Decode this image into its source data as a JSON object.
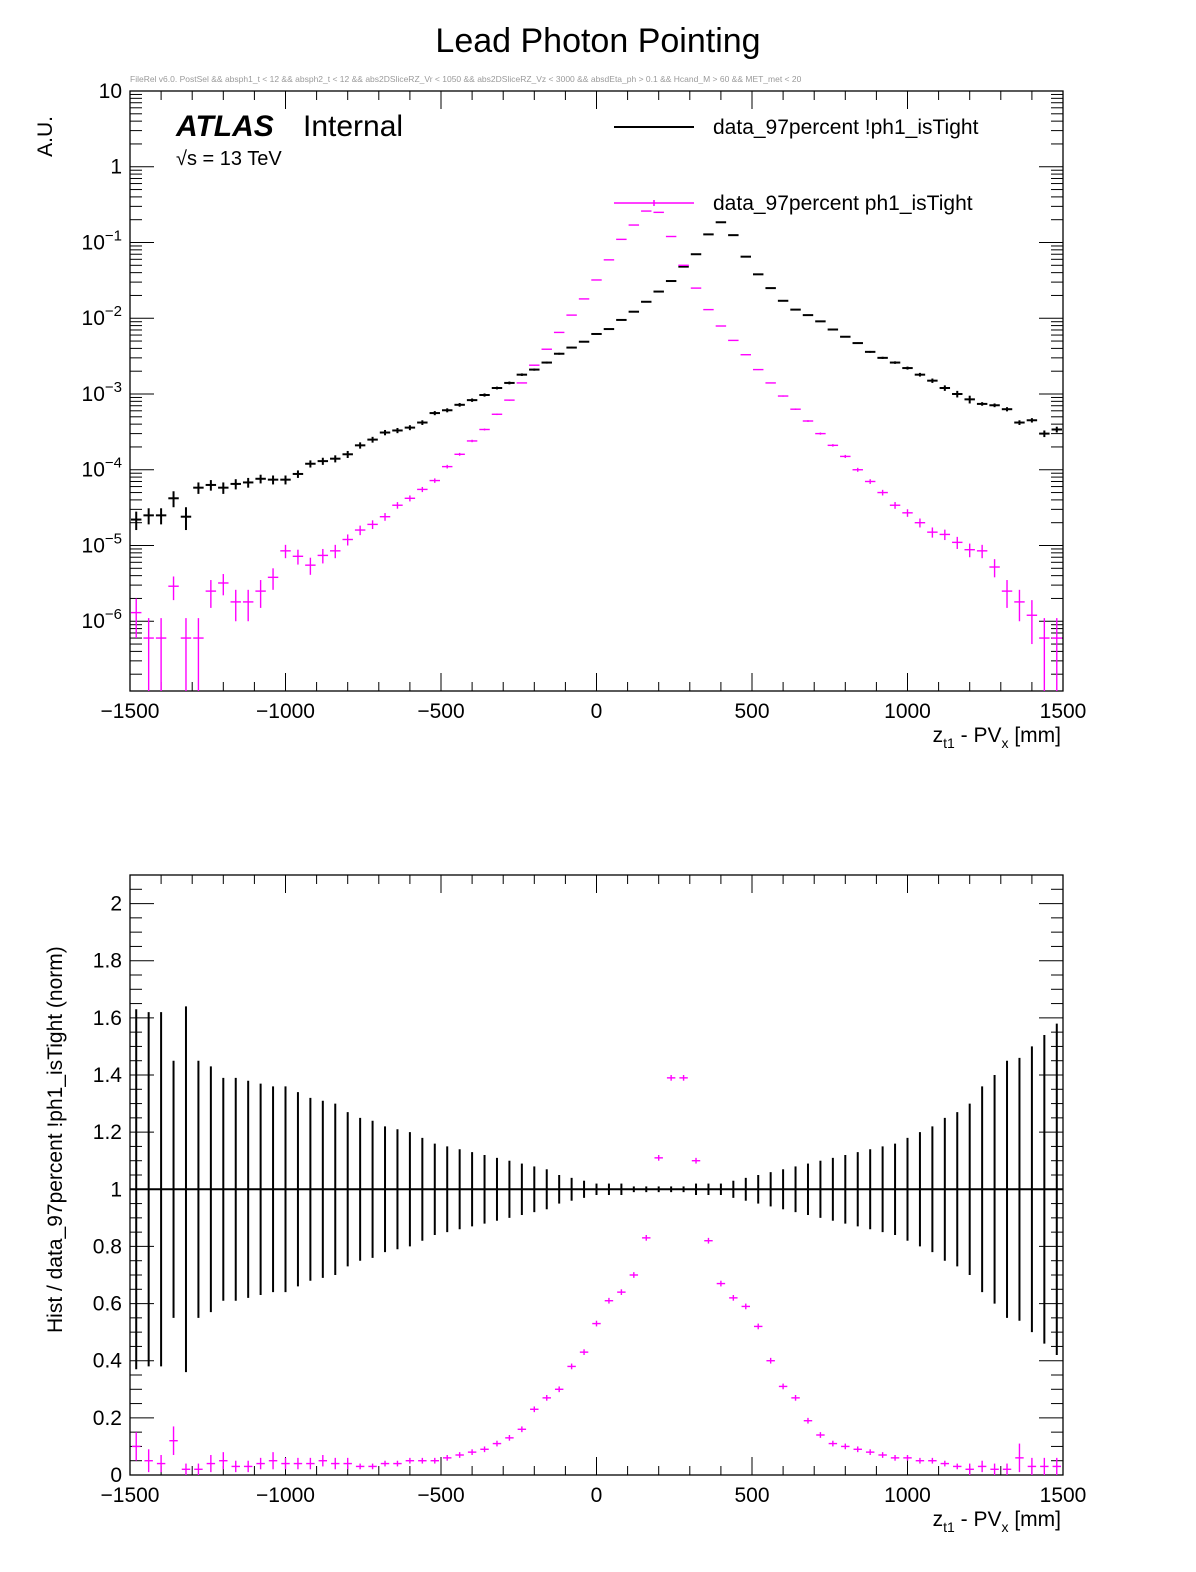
{
  "figure": {
    "title": "Lead Photon Pointing",
    "cut_string": "FileRel v6.0. PostSel &&  absph1_t < 12 && absph2_t < 12 && abs2DSliceRZ_Vr < 1050 && abs2DSliceRZ_Vz < 3000 && absdEta_ph > 0.1 && Hcand_M > 60 && MET_met < 20",
    "atlas_label": "ATLAS",
    "internal_label": "Internal",
    "energy_label": "√s = 13 TeV",
    "colors": {
      "black_series": "#000000",
      "magenta_series": "#ff00ff",
      "frame": "#000000"
    }
  },
  "chart_data": [
    {
      "type": "scatter",
      "panel": "top",
      "yscale": "log",
      "xlabel": "z",
      "xlabel_sub": "t1",
      "xlabel_mid": " - PV",
      "xlabel_sub2": "x",
      "xlabel_tail": " [mm]",
      "ylabel": "A.U.",
      "xlim": [
        -1500,
        1500
      ],
      "ylim": [
        1.2e-07,
        10
      ],
      "x_ticks": [
        "−1500",
        "−1000",
        "−500",
        "0",
        "500",
        "1000",
        "1500"
      ],
      "x_tick_values": [
        -1500,
        -1000,
        -500,
        0,
        500,
        1000,
        1500
      ],
      "y_ticks": [
        {
          "base": "10",
          "exp": ""
        },
        {
          "base": "1",
          "exp": ""
        },
        {
          "base": "10",
          "exp": "−1"
        },
        {
          "base": "10",
          "exp": "−2"
        },
        {
          "base": "10",
          "exp": "−3"
        },
        {
          "base": "10",
          "exp": "−4"
        },
        {
          "base": "10",
          "exp": "−5"
        },
        {
          "base": "10",
          "exp": "−6"
        }
      ],
      "y_tick_values": [
        10,
        1,
        0.1,
        0.01,
        0.001,
        0.0001,
        1e-05,
        1e-06
      ],
      "legend": {
        "position": "top-right",
        "entries": [
          "data_97percent !ph1_isTight",
          "data_97percent ph1_isTight"
        ]
      },
      "bin_width": 40,
      "x": [
        -1480,
        -1440,
        -1400,
        -1360,
        -1320,
        -1280,
        -1240,
        -1200,
        -1160,
        -1120,
        -1080,
        -1040,
        -1000,
        -960,
        -920,
        -880,
        -840,
        -800,
        -760,
        -720,
        -680,
        -640,
        -600,
        -560,
        -520,
        -480,
        -440,
        -400,
        -360,
        -320,
        -280,
        -240,
        -200,
        -160,
        -120,
        -80,
        -40,
        0,
        40,
        80,
        120,
        160,
        200,
        240,
        280,
        320,
        360,
        400,
        440,
        480,
        520,
        560,
        600,
        640,
        680,
        720,
        760,
        800,
        840,
        880,
        920,
        960,
        1000,
        1040,
        1080,
        1120,
        1160,
        1200,
        1240,
        1280,
        1320,
        1360,
        1400,
        1440,
        1480
      ],
      "series": [
        {
          "name": "data_97percent !ph1_isTight",
          "values": [
            2.2e-05,
            2.5e-05,
            2.5e-05,
            4.2e-05,
            2.4e-05,
            5.8e-05,
            6.3e-05,
            5.8e-05,
            6.5e-05,
            6.8e-05,
            7.6e-05,
            7.4e-05,
            7.4e-05,
            8.8e-05,
            0.00012,
            0.00013,
            0.00014,
            0.00016,
            0.00021,
            0.00025,
            0.00031,
            0.00033,
            0.00036,
            0.00042,
            0.00056,
            0.00061,
            0.00072,
            0.00083,
            0.00097,
            0.0012,
            0.0014,
            0.0018,
            0.0021,
            0.0026,
            0.0034,
            0.0041,
            0.0049,
            0.0062,
            0.0072,
            0.0095,
            0.0122,
            0.0165,
            0.0225,
            0.031,
            0.048,
            0.07,
            0.128,
            0.185,
            0.125,
            0.065,
            0.038,
            0.025,
            0.017,
            0.013,
            0.011,
            0.0091,
            0.0071,
            0.0057,
            0.0047,
            0.0036,
            0.003,
            0.0026,
            0.0022,
            0.0018,
            0.0015,
            0.0012,
            0.001,
            0.00085,
            0.00074,
            0.00071,
            0.00063,
            0.00042,
            0.00045,
            0.0003,
            0.00034
          ],
          "errors": [
            6e-06,
            6e-06,
            6e-06,
            1e-05,
            8e-06,
            1e-05,
            1e-05,
            1e-05,
            1e-05,
            1e-05,
            1e-05,
            1e-05,
            1e-05,
            1e-05,
            1.3e-05,
            1.4e-05,
            1.5e-05,
            1.7e-05,
            2e-05,
            2.2e-05,
            2.5e-05,
            2.6e-05,
            2.7e-05,
            3e-05,
            3.5e-05,
            3.7e-05,
            4e-05,
            4.3e-05,
            4.7e-05,
            5e-05,
            6e-05,
            7e-05,
            7e-05,
            8e-05,
            0.0001,
            0.0001,
            0.0001,
            0.0001,
            0.0001,
            0.0001,
            0.0001,
            0.0001,
            0.0001,
            0.0001,
            0.0001,
            0.0001,
            0.0001,
            0.0001,
            0.0001,
            0.0001,
            0.0001,
            0.0001,
            0.0001,
            0.0001,
            0.0001,
            0.0001,
            0.0001,
            0.0001,
            0.0001,
            0.0001,
            0.0001,
            0.0001,
            0.0001,
            0.0001,
            0.0001,
            0.0001,
            0.0001,
            0.0001,
            4e-05,
            4e-05,
            4e-05,
            3e-05,
            3e-05,
            3e-05,
            3e-05
          ]
        },
        {
          "name": "data_97percent ph1_isTight",
          "values": [
            1.3e-06,
            6e-07,
            6e-07,
            2.9e-06,
            6e-07,
            6e-07,
            2.5e-06,
            3.2e-06,
            1.8e-06,
            1.8e-06,
            2.5e-06,
            3.8e-06,
            8.5e-06,
            7.2e-06,
            5.5e-06,
            7.4e-06,
            8.5e-06,
            1.2e-05,
            1.6e-05,
            1.9e-05,
            2.4e-05,
            3.4e-05,
            4.2e-05,
            5.5e-05,
            7.2e-05,
            0.00011,
            0.00016,
            0.00024,
            0.00034,
            0.00054,
            0.00083,
            0.0014,
            0.0024,
            0.0039,
            0.0065,
            0.011,
            0.018,
            0.032,
            0.059,
            0.11,
            0.17,
            0.26,
            0.25,
            0.12,
            0.05,
            0.025,
            0.013,
            0.0079,
            0.0051,
            0.0033,
            0.0021,
            0.0014,
            0.00094,
            0.00063,
            0.00044,
            0.0003,
            0.00021,
            0.00015,
            0.0001,
            7e-05,
            5e-05,
            3.4e-05,
            2.7e-05,
            2e-05,
            1.5e-05,
            1.4e-05,
            1.1e-05,
            8.8e-06,
            8.5e-06,
            5.2e-06,
            2.5e-06,
            1.8e-06,
            1.2e-06,
            6e-07,
            6e-07
          ],
          "errors": [
            7e-07,
            5e-07,
            5e-07,
            1e-06,
            5e-07,
            5e-07,
            1e-06,
            1e-06,
            8e-07,
            8e-07,
            1e-06,
            1.2e-06,
            1.7e-06,
            1.6e-06,
            1.4e-06,
            1.6e-06,
            1.7e-06,
            2e-06,
            2.3e-06,
            2.5e-06,
            2.8e-06,
            3.4e-06,
            3.8e-06,
            4.3e-06,
            4.9e-06,
            6e-06,
            7e-06,
            9e-06,
            1e-05,
            1.3e-05,
            1.6e-05,
            2e-05,
            3e-05,
            4e-05,
            5e-05,
            6e-05,
            8e-05,
            0.0001,
            0.0001,
            0.0001,
            0.0001,
            0.0001,
            0.0001,
            0.0001,
            0.0001,
            0.0001,
            0.0001,
            5e-05,
            4e-05,
            3e-05,
            3e-05,
            2e-05,
            1.8e-05,
            1.5e-05,
            1.2e-05,
            1e-05,
            8e-06,
            7e-06,
            6e-06,
            5e-06,
            4.3e-06,
            3.5e-06,
            3.1e-06,
            2.7e-06,
            2.3e-06,
            2.2e-06,
            2e-06,
            1.8e-06,
            1.7e-06,
            1.4e-06,
            1e-06,
            8e-07,
            7e-07,
            5e-07,
            5e-07
          ]
        }
      ]
    },
    {
      "type": "scatter",
      "panel": "bottom",
      "yscale": "linear",
      "xlabel": "z",
      "xlabel_sub": "t1",
      "xlabel_mid": " - PV",
      "xlabel_sub2": "x",
      "xlabel_tail": " [mm]",
      "ylabel": "Hist / data_97percent !ph1_isTight (norm)",
      "xlim": [
        -1500,
        1500
      ],
      "ylim": [
        0,
        2.1
      ],
      "x_ticks": [
        "−1500",
        "−1000",
        "−500",
        "0",
        "500",
        "1000",
        "1500"
      ],
      "x_tick_values": [
        -1500,
        -1000,
        -500,
        0,
        500,
        1000,
        1500
      ],
      "y_ticks": [
        "0",
        "0.2",
        "0.4",
        "0.6",
        "0.8",
        "1",
        "1.2",
        "1.4",
        "1.6",
        "1.8",
        "2"
      ],
      "y_tick_values": [
        0,
        0.2,
        0.4,
        0.6,
        0.8,
        1,
        1.2,
        1.4,
        1.6,
        1.8,
        2
      ],
      "series": [
        {
          "name": "data_97percent !ph1_isTight",
          "reference_value": 1,
          "errors": [
            0.63,
            0.62,
            0.62,
            0.45,
            0.64,
            0.45,
            0.43,
            0.39,
            0.39,
            0.38,
            0.37,
            0.36,
            0.36,
            0.34,
            0.32,
            0.31,
            0.3,
            0.27,
            0.25,
            0.24,
            0.22,
            0.21,
            0.2,
            0.18,
            0.16,
            0.15,
            0.14,
            0.13,
            0.12,
            0.11,
            0.1,
            0.09,
            0.08,
            0.07,
            0.05,
            0.04,
            0.03,
            0.02,
            0.02,
            0.02,
            0.01,
            0.01,
            0.01,
            0.01,
            0.01,
            0.02,
            0.02,
            0.02,
            0.03,
            0.04,
            0.05,
            0.06,
            0.07,
            0.08,
            0.09,
            0.1,
            0.11,
            0.12,
            0.13,
            0.14,
            0.15,
            0.16,
            0.18,
            0.2,
            0.22,
            0.25,
            0.27,
            0.3,
            0.36,
            0.4,
            0.45,
            0.46,
            0.5,
            0.54,
            0.58
          ]
        },
        {
          "name": "data_97percent ph1_isTight",
          "values": [
            0.1,
            0.05,
            0.04,
            0.12,
            0.02,
            0.02,
            0.04,
            0.05,
            0.03,
            0.03,
            0.04,
            0.05,
            0.04,
            0.04,
            0.04,
            0.05,
            0.04,
            0.04,
            0.03,
            0.03,
            0.04,
            0.04,
            0.05,
            0.05,
            0.05,
            0.06,
            0.07,
            0.08,
            0.09,
            0.11,
            0.13,
            0.16,
            0.23,
            0.27,
            0.3,
            0.38,
            0.43,
            0.53,
            0.61,
            0.64,
            0.7,
            0.83,
            1.11,
            1.39,
            1.39,
            1.1,
            0.82,
            0.67,
            0.62,
            0.59,
            0.52,
            0.4,
            0.31,
            0.27,
            0.19,
            0.14,
            0.11,
            0.1,
            0.09,
            0.08,
            0.07,
            0.06,
            0.06,
            0.05,
            0.05,
            0.04,
            0.03,
            0.02,
            0.03,
            0.02,
            0.02,
            0.06,
            0.03,
            0.03,
            0.03
          ],
          "errors": [
            0.05,
            0.04,
            0.03,
            0.05,
            0.02,
            0.02,
            0.03,
            0.03,
            0.02,
            0.02,
            0.02,
            0.03,
            0.02,
            0.02,
            0.02,
            0.02,
            0.02,
            0.02,
            0.01,
            0.01,
            0.01,
            0.01,
            0.01,
            0.01,
            0.01,
            0.01,
            0.01,
            0.01,
            0.01,
            0.01,
            0.01,
            0.01,
            0.01,
            0.01,
            0.01,
            0.01,
            0.01,
            0.01,
            0.01,
            0.01,
            0.01,
            0.01,
            0.01,
            0.01,
            0.01,
            0.01,
            0.01,
            0.01,
            0.01,
            0.01,
            0.01,
            0.01,
            0.01,
            0.01,
            0.01,
            0.01,
            0.01,
            0.01,
            0.01,
            0.01,
            0.01,
            0.01,
            0.01,
            0.01,
            0.01,
            0.01,
            0.01,
            0.02,
            0.02,
            0.02,
            0.02,
            0.05,
            0.03,
            0.03,
            0.03
          ]
        }
      ]
    }
  ]
}
